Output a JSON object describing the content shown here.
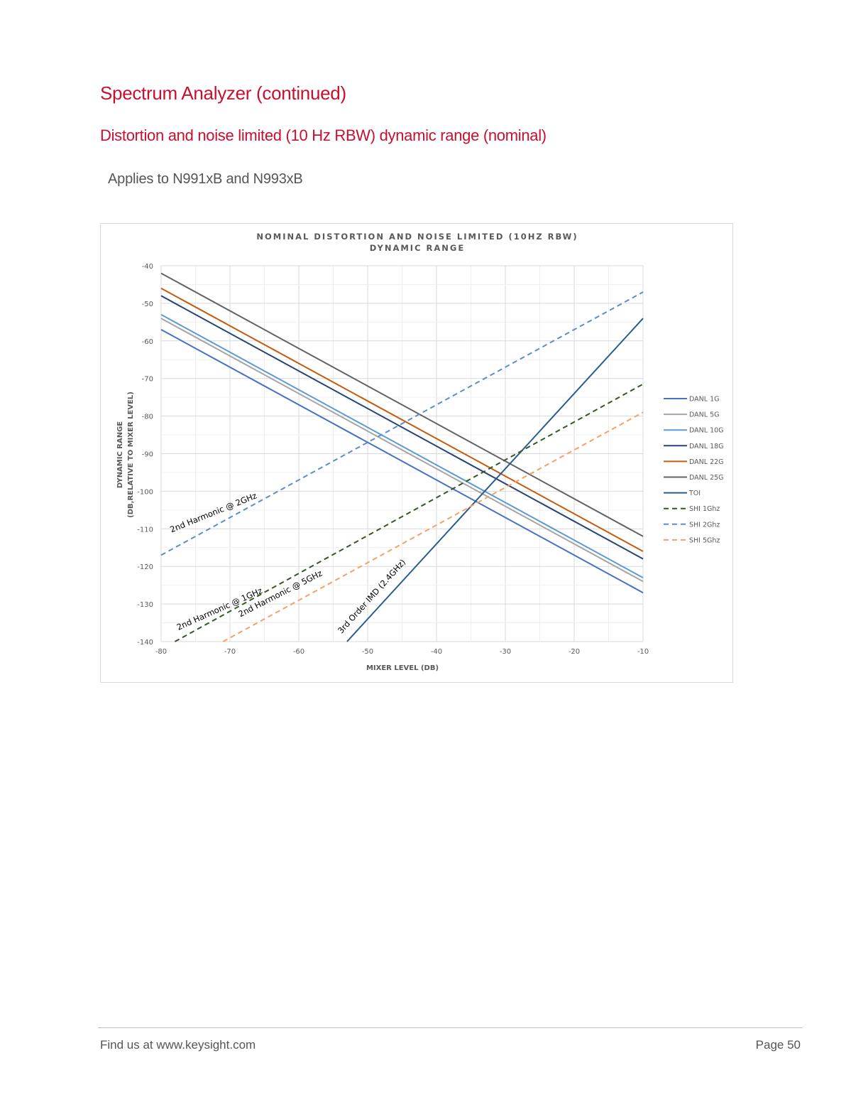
{
  "page": {
    "title": "Spectrum Analyzer (continued)",
    "subtitle": "Distortion and noise limited (10 Hz RBW) dynamic range (nominal)",
    "applies_to": "Applies to N991xB and N993xB",
    "footer_left": "Find us at www.keysight.com",
    "footer_right": "Page 50"
  },
  "chart_data": {
    "type": "line",
    "title_line1": "NOMINAL DISTORTION AND NOISE LIMITED (10HZ RBW)",
    "title_line2": "DYNAMIC RANGE",
    "xlabel": "MIXER  LEVEL (DB)",
    "ylabel_line1": "DYNAMIC RANGE",
    "ylabel_line2": "(DB,RELATIVE TO MIXER  LEVEL)",
    "xlim": [
      -80,
      -10
    ],
    "ylim": [
      -140,
      -40
    ],
    "xticks": [
      -80,
      -70,
      -60,
      -50,
      -40,
      -30,
      -20,
      -10
    ],
    "yticks": [
      -40,
      -50,
      -60,
      -70,
      -80,
      -90,
      -100,
      -110,
      -120,
      -130,
      -140
    ],
    "grid": true,
    "legend_position": "right",
    "series": [
      {
        "name": "DANL 1G",
        "color": "#4472c4",
        "dash": false,
        "width": 2,
        "x": [
          -80,
          -10
        ],
        "y": [
          -57,
          -127
        ]
      },
      {
        "name": "DANL 5G",
        "color": "#a5a5a5",
        "dash": false,
        "width": 2,
        "x": [
          -80,
          -10
        ],
        "y": [
          -54,
          -124
        ]
      },
      {
        "name": "DANL 10G",
        "color": "#5b9bd5",
        "dash": false,
        "width": 2,
        "x": [
          -80,
          -10
        ],
        "y": [
          -53,
          -123
        ]
      },
      {
        "name": "DANL 18G",
        "color": "#264478",
        "dash": false,
        "width": 2,
        "x": [
          -80,
          -10
        ],
        "y": [
          -48,
          -118
        ]
      },
      {
        "name": "DANL 22G",
        "color": "#c55a11",
        "dash": false,
        "width": 2,
        "x": [
          -80,
          -10
        ],
        "y": [
          -46,
          -116
        ]
      },
      {
        "name": "DANL 25G",
        "color": "#636363",
        "dash": false,
        "width": 2,
        "x": [
          -80,
          -10
        ],
        "y": [
          -42,
          -112
        ]
      },
      {
        "name": "TOI",
        "color": "#255e91",
        "dash": false,
        "width": 2,
        "x": [
          -53,
          -10
        ],
        "y": [
          -140,
          -54
        ]
      },
      {
        "name": "SHI 1Ghz",
        "color": "#375623",
        "dash": true,
        "width": 2,
        "x": [
          -78,
          -10
        ],
        "y": [
          -140,
          -71.5
        ]
      },
      {
        "name": "SHI 2Ghz",
        "color": "#5b8bd0",
        "dash": true,
        "width": 2,
        "x": [
          -80,
          -10
        ],
        "y": [
          -117,
          -47
        ]
      },
      {
        "name": "SHI 5Ghz",
        "color": "#f4a068",
        "dash": true,
        "width": 2,
        "x": [
          -71,
          -10
        ],
        "y": [
          -140,
          -79
        ]
      }
    ],
    "annotations": [
      {
        "text": "2nd Harmonic @ 2GHz",
        "x": -78.5,
        "y": -111,
        "angle": -22
      },
      {
        "text": "2nd Harmonic @ 1GHz",
        "x": -77.5,
        "y": -137,
        "angle": -24
      },
      {
        "text": "2nd Harmonic @ 5GHz",
        "x": -68.5,
        "y": -133.5,
        "angle": -27
      },
      {
        "text": "3rd Order IMD (2.4GHz)",
        "x": -53.8,
        "y": -138,
        "angle": -48
      }
    ]
  }
}
